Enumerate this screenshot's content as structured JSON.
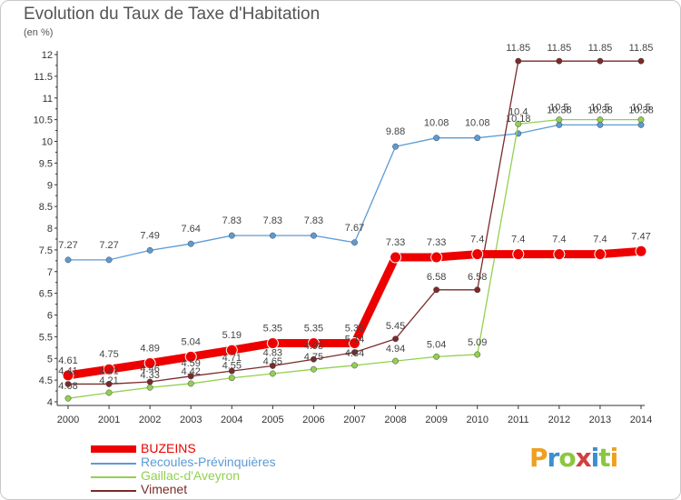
{
  "title": "Evolution du Taux de Taxe d'Habitation",
  "subtitle": "(en %)",
  "logo_text": "Proxiti",
  "logo_colors": [
    "#f0a020",
    "#3a8fd0",
    "#8cc63f",
    "#d04040",
    "#3a8fd0",
    "#8cc63f",
    "#f0a020"
  ],
  "chart_data": {
    "type": "line",
    "x": [
      "2000",
      "2001",
      "2002",
      "2003",
      "2004",
      "2005",
      "2006",
      "2007",
      "2008",
      "2009",
      "2010",
      "2011",
      "2012",
      "2013",
      "2014"
    ],
    "ylim": [
      4,
      12
    ],
    "yticks": [
      "4",
      "4.5",
      "5",
      "5.5",
      "6",
      "6.5",
      "7",
      "7.5",
      "8",
      "8.5",
      "9",
      "9.5",
      "10",
      "10.5",
      "11",
      "11.5",
      "12"
    ],
    "grid": false,
    "legend_position": "bottom-left",
    "series": [
      {
        "name": "BUZEINS",
        "color": "#ee0000",
        "values": [
          4.61,
          4.75,
          4.89,
          5.04,
          5.19,
          5.35,
          5.35,
          5.35,
          7.33,
          7.33,
          7.4,
          7.4,
          7.4,
          7.4,
          7.47
        ],
        "labels": [
          "4.61",
          "4.75",
          "4.89",
          "5.04",
          "5.19",
          "5.35",
          "5.35",
          "5.35",
          "7.33",
          "7.33",
          "7.4",
          "7.4",
          "7.4",
          "7.4",
          "7.47"
        ]
      },
      {
        "name": "Recoules-Prévinquières",
        "color": "#5b9bd5",
        "values": [
          7.27,
          7.27,
          7.49,
          7.64,
          7.83,
          7.83,
          7.83,
          7.67,
          9.88,
          10.08,
          10.08,
          10.18,
          10.38,
          10.38,
          10.38
        ],
        "labels": [
          "7.27",
          "7.27",
          "7.49",
          "7.64",
          "7.83",
          "7.83",
          "7.83",
          "7.67",
          "9.88",
          "10.08",
          "10.08",
          "10.18",
          "10.38",
          "10.38",
          "10.38"
        ]
      },
      {
        "name": "Gaillac-d'Aveyron",
        "color": "#92d050",
        "values": [
          4.08,
          4.21,
          4.33,
          4.42,
          4.55,
          4.65,
          4.75,
          4.84,
          4.94,
          5.04,
          5.09,
          10.4,
          10.5,
          10.5,
          10.5
        ],
        "labels": [
          "4.08",
          "4.21",
          "4.33",
          "4.42",
          "4.55",
          "4.65",
          "4.75",
          "4.84",
          "4.94",
          "5.04",
          "5.09",
          "10.4",
          "10.5",
          "10.5",
          "10.5"
        ]
      },
      {
        "name": "Vimenet",
        "color": "#7b2a2a",
        "values": [
          4.41,
          4.41,
          4.46,
          4.59,
          4.71,
          4.83,
          4.98,
          5.14,
          5.45,
          6.58,
          6.58,
          11.85,
          11.85,
          11.85,
          11.85
        ],
        "labels": [
          "4.41",
          "4.41",
          "4.46",
          "4.59",
          "4.71",
          "4.83",
          "4.98",
          "5.14",
          "5.45",
          "6.58",
          "6.58",
          "11.85",
          "11.85",
          "11.85",
          "11.85"
        ]
      }
    ]
  }
}
